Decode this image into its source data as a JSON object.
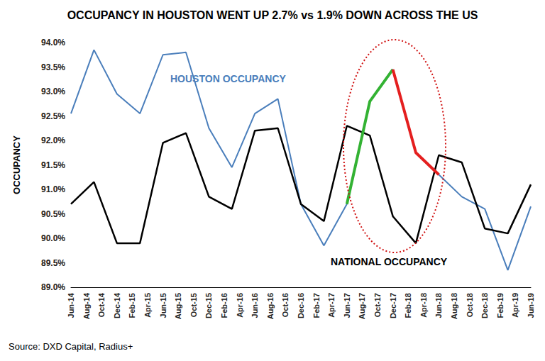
{
  "chart_data": {
    "type": "line",
    "title": "OCCUPANCY IN HOUSTON WENT UP 2.7% vs 1.9% DOWN ACROSS THE US",
    "y_label": "OCCUPANCY",
    "source": "Source: DXD Capital, Radius+",
    "grid": false,
    "categories": [
      "Jun-14",
      null,
      "Aug-14",
      null,
      "Oct-14",
      null,
      "Dec-14",
      null,
      "Feb-15",
      null,
      "Apr-15",
      null,
      "Jun-15",
      null,
      "Aug-15",
      null,
      "Oct-15",
      null,
      "Dec-15",
      null,
      "Feb-16",
      null,
      "Apr-16",
      null,
      "Jun-16",
      null,
      "Aug-16",
      null,
      "Oct-16",
      null,
      "Dec-16",
      null,
      "Feb-17",
      null,
      "Apr-17",
      null,
      "Jun-17",
      null,
      "Aug-17",
      null,
      "Oct-17",
      null,
      "Dec-17",
      null,
      "Feb-18",
      null,
      "Apr-18",
      null,
      "Jun-18",
      null,
      "Aug-18",
      null,
      "Oct-18",
      null,
      "Dec-18",
      null,
      "Feb-19",
      null,
      "Apr-19",
      null,
      "Jun-19"
    ],
    "ylim": [
      89,
      94
    ],
    "yticks": [
      {
        "value": 89,
        "label": "89.0%"
      },
      {
        "value": 89.5,
        "label": "89.5%"
      },
      {
        "value": 90,
        "label": "90.0%"
      },
      {
        "value": 90.5,
        "label": "90.5%"
      },
      {
        "value": 91,
        "label": "91.0%"
      },
      {
        "value": 91.5,
        "label": "91.5%"
      },
      {
        "value": 92,
        "label": "92.0%"
      },
      {
        "value": 92.5,
        "label": "92.5%"
      },
      {
        "value": 93,
        "label": "93.0%"
      },
      {
        "value": 93.5,
        "label": "93.5%"
      },
      {
        "value": 94,
        "label": "94.0%"
      }
    ],
    "series": [
      {
        "name": "HOUSTON OCCUPANCY",
        "color": "#4a7ebb",
        "line_style": "solid",
        "values": [
          92.55,
          null,
          null,
          93.85,
          null,
          null,
          92.95,
          null,
          null,
          92.55,
          null,
          null,
          93.75,
          null,
          null,
          93.8,
          null,
          null,
          92.25,
          null,
          null,
          91.45,
          null,
          null,
          92.55,
          null,
          null,
          92.85,
          null,
          null,
          90.7,
          null,
          null,
          89.85,
          null,
          null,
          90.7,
          null,
          null,
          92.8,
          null,
          null,
          93.45,
          null,
          null,
          91.75,
          null,
          null,
          91.3,
          null,
          null,
          90.85,
          null,
          null,
          90.6,
          null,
          null,
          89.35,
          null,
          null,
          90.65
        ]
      },
      {
        "name": "NATIONAL OCCUPANCY",
        "color": "#000000",
        "line_style": "solid",
        "values": [
          90.7,
          null,
          null,
          91.15,
          null,
          null,
          89.9,
          null,
          null,
          89.9,
          null,
          null,
          91.95,
          null,
          null,
          92.15,
          null,
          null,
          90.85,
          null,
          null,
          90.6,
          null,
          null,
          92.2,
          null,
          null,
          92.25,
          null,
          null,
          90.7,
          null,
          null,
          90.35,
          null,
          null,
          92.3,
          null,
          null,
          92.1,
          null,
          null,
          90.45,
          null,
          null,
          89.9,
          null,
          null,
          91.7,
          null,
          null,
          91.55,
          null,
          null,
          90.2,
          null,
          null,
          90.1,
          null,
          null,
          91.1
        ]
      },
      {
        "color": "#33b233",
        "line_style": "solid",
        "values": [
          null,
          null,
          null,
          null,
          null,
          null,
          null,
          null,
          null,
          null,
          null,
          null,
          null,
          null,
          null,
          null,
          null,
          null,
          null,
          null,
          null,
          null,
          null,
          null,
          null,
          null,
          null,
          null,
          null,
          null,
          null,
          null,
          null,
          null,
          null,
          null,
          90.7,
          null,
          null,
          92.8,
          null,
          null,
          93.45,
          null,
          null,
          null,
          null,
          null,
          null,
          null,
          null,
          null,
          null,
          null,
          null,
          null,
          null,
          null,
          null,
          null,
          null
        ]
      },
      {
        "color": "#e41f1f",
        "line_style": "solid",
        "values": [
          null,
          null,
          null,
          null,
          null,
          null,
          null,
          null,
          null,
          null,
          null,
          null,
          null,
          null,
          null,
          null,
          null,
          null,
          null,
          null,
          null,
          null,
          null,
          null,
          null,
          null,
          null,
          null,
          null,
          null,
          null,
          null,
          null,
          null,
          null,
          null,
          null,
          null,
          null,
          null,
          null,
          null,
          93.45,
          null,
          null,
          91.75,
          null,
          null,
          91.3,
          null,
          null,
          null,
          null,
          null,
          null,
          null,
          null,
          null,
          null,
          null,
          null
        ]
      }
    ]
  }
}
